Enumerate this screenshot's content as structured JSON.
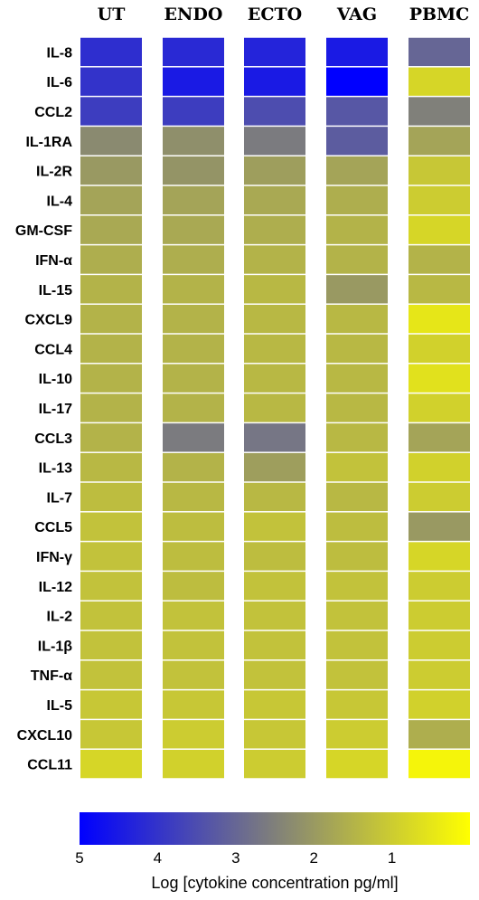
{
  "chart_data": {
    "type": "heatmap",
    "columns": [
      "UT",
      "ENDO",
      "ECTO",
      "VAG",
      "PBMC"
    ],
    "rows": [
      "IL-8",
      "IL-6",
      "CCL2",
      "IL-1RA",
      "IL-2R",
      "IL-4",
      "GM-CSF",
      "IFN-α",
      "IL-15",
      "CXCL9",
      "CCL4",
      "IL-10",
      "IL-17",
      "CCL3",
      "IL-13",
      "IL-7",
      "CCL5",
      "IFN-γ",
      "IL-12",
      "IL-2",
      "IL-1β",
      "TNF-α",
      "IL-5",
      "CXCL10",
      "CCL11"
    ],
    "values": [
      [
        4.1,
        4.2,
        4.3,
        4.5,
        3.0
      ],
      [
        4.0,
        4.5,
        4.5,
        5.0,
        0.8
      ],
      [
        3.8,
        3.8,
        3.5,
        3.3,
        2.5
      ],
      [
        2.3,
        2.2,
        2.6,
        3.2,
        1.8
      ],
      [
        2.0,
        2.1,
        1.9,
        1.8,
        1.1
      ],
      [
        1.8,
        1.8,
        1.7,
        1.6,
        1.0
      ],
      [
        1.7,
        1.7,
        1.6,
        1.5,
        0.8
      ],
      [
        1.6,
        1.6,
        1.5,
        1.5,
        1.5
      ],
      [
        1.5,
        1.5,
        1.4,
        2.0,
        1.4
      ],
      [
        1.5,
        1.5,
        1.4,
        1.4,
        0.5
      ],
      [
        1.5,
        1.5,
        1.4,
        1.4,
        0.9
      ],
      [
        1.5,
        1.5,
        1.4,
        1.4,
        0.6
      ],
      [
        1.5,
        1.5,
        1.4,
        1.4,
        0.9
      ],
      [
        1.5,
        2.6,
        2.7,
        1.4,
        1.8
      ],
      [
        1.4,
        1.5,
        1.9,
        1.2,
        0.9
      ],
      [
        1.3,
        1.4,
        1.4,
        1.4,
        1.0
      ],
      [
        1.2,
        1.3,
        1.2,
        1.3,
        2.0
      ],
      [
        1.2,
        1.3,
        1.3,
        1.3,
        0.8
      ],
      [
        1.2,
        1.3,
        1.2,
        1.2,
        1.0
      ],
      [
        1.2,
        1.2,
        1.2,
        1.2,
        1.0
      ],
      [
        1.2,
        1.2,
        1.2,
        1.2,
        1.0
      ],
      [
        1.2,
        1.2,
        1.2,
        1.2,
        1.0
      ],
      [
        1.1,
        1.1,
        1.1,
        1.1,
        0.9
      ],
      [
        1.1,
        1.0,
        1.1,
        1.0,
        1.6
      ],
      [
        0.8,
        0.9,
        1.0,
        0.8,
        0.2
      ]
    ],
    "colorbar": {
      "ticks": [
        5,
        4,
        3,
        2,
        1
      ],
      "range": [
        5,
        0
      ],
      "colors": [
        "#0000ff",
        "#80807a",
        "#ffff00"
      ],
      "label": "Log [cytokine concentration pg/ml]"
    }
  }
}
